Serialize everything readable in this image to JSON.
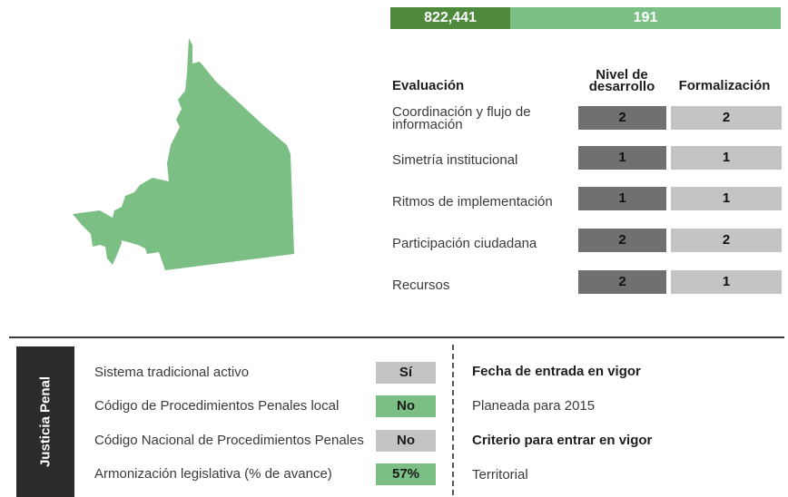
{
  "stats": {
    "value_dark": "822,441",
    "value_light": "191"
  },
  "colors": {
    "map_fill": "#7bbf85",
    "dark_green": "#4f8a3c",
    "nivel_cell": "#6e7072",
    "formal_cell": "#c3c4c6"
  },
  "evaluation": {
    "header_eval": "Evaluación",
    "header_nivel": "Nivel de desarrollo",
    "header_form": "Formalización",
    "rows": [
      {
        "label": "Coordinación y flujo de información",
        "nivel": "2",
        "form": "2"
      },
      {
        "label": "Simetría institucional",
        "nivel": "1",
        "form": "1"
      },
      {
        "label": "Ritmos de implementación",
        "nivel": "1",
        "form": "1"
      },
      {
        "label": "Participación ciudadana",
        "nivel": "2",
        "form": "2"
      },
      {
        "label": "Recursos",
        "nivel": "2",
        "form": "1"
      }
    ]
  },
  "justicia": {
    "side_title": "Justicia Penal",
    "items": [
      {
        "label": "Sistema tradicional activo",
        "value": "Sí"
      },
      {
        "label": "Código de Procedimientos Penales local",
        "value": "No"
      },
      {
        "label": "Código Nacional de Procedimientos Penales",
        "value": "No"
      },
      {
        "label": "Armonización legislativa (% de avance)",
        "value": "57%"
      }
    ],
    "fecha_title": "Fecha de entrada en vigor",
    "fecha_value": "Planeada para 2015",
    "criterio_title": "Criterio para entrar en vigor",
    "criterio_value": "Territorial"
  }
}
